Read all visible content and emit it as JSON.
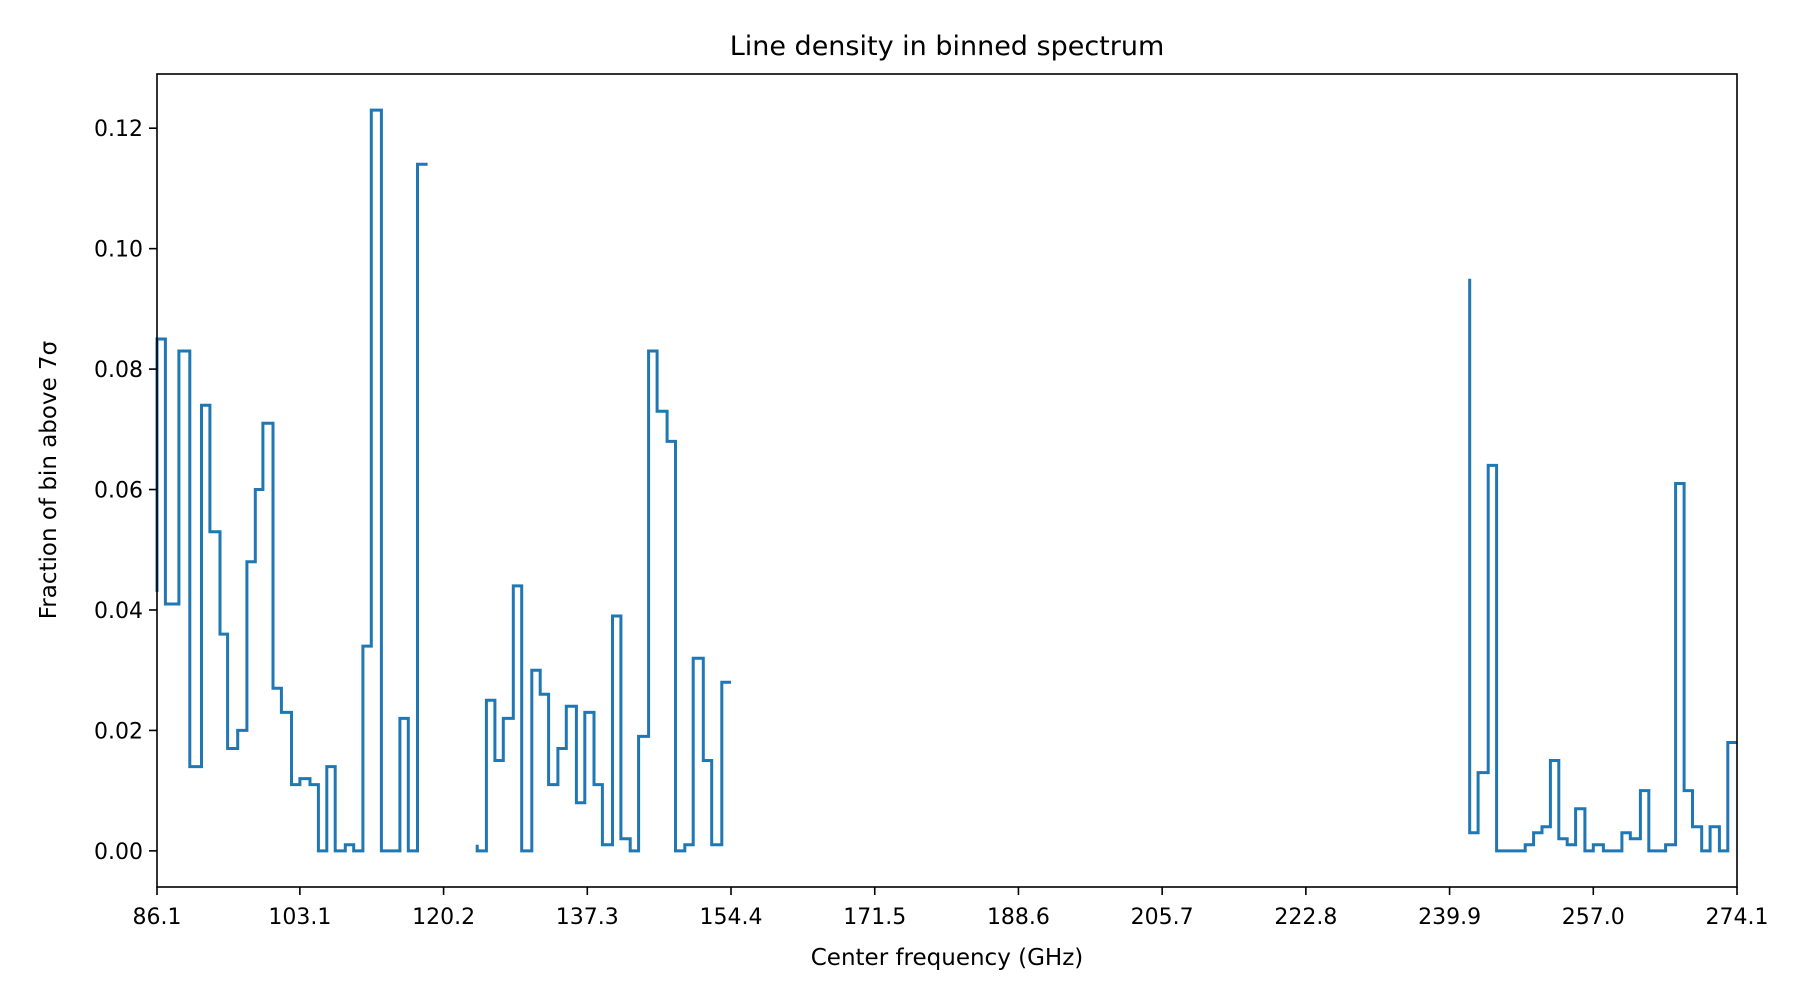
{
  "chart_data": {
    "type": "line",
    "title": "Line density in binned spectrum",
    "xlabel": "Center frequency (GHz)",
    "ylabel": "Fraction of bin above 7σ",
    "xlim": [
      86.1,
      274.1
    ],
    "ylim": [
      -0.006,
      0.129
    ],
    "xticks": [
      86.1,
      103.1,
      120.2,
      137.3,
      154.4,
      171.5,
      188.6,
      205.7,
      222.8,
      239.9,
      257.0,
      274.1
    ],
    "xtick_labels": [
      "86.1",
      "103.1",
      "120.2",
      "137.3",
      "154.4",
      "171.5",
      "188.6",
      "205.7",
      "222.8",
      "239.9",
      "257.0",
      "274.1"
    ],
    "yticks": [
      0.0,
      0.02,
      0.04,
      0.06,
      0.08,
      0.1,
      0.12
    ],
    "ytick_labels": [
      "0.00",
      "0.02",
      "0.04",
      "0.06",
      "0.08",
      "0.10",
      "0.12"
    ],
    "grid": false,
    "step": "pre",
    "color": "#1f77b4",
    "segments": [
      {
        "x": [
          86.1,
          87.1,
          88.7,
          90.0,
          91.4,
          92.4,
          93.6,
          94.5,
          95.7,
          96.8,
          97.8,
          98.7,
          99.9,
          100.9,
          102.1,
          103.1,
          104.3,
          105.3,
          106.3,
          107.3,
          108.5,
          109.5,
          110.6,
          111.6,
          112.8,
          113.8,
          115.0,
          116.0,
          117.1,
          118.3
        ],
        "y": [
          0.043,
          0.085,
          0.041,
          0.083,
          0.014,
          0.074,
          0.053,
          0.036,
          0.017,
          0.02,
          0.048,
          0.06,
          0.071,
          0.027,
          0.023,
          0.011,
          0.012,
          0.011,
          0.0,
          0.014,
          0.0,
          0.001,
          0.0,
          0.034,
          0.123,
          0.0,
          0.0,
          0.022,
          0.0,
          0.114
        ]
      },
      {
        "x": [
          124.2,
          125.3,
          126.3,
          127.3,
          128.5,
          129.5,
          130.7,
          131.7,
          132.7,
          133.8,
          134.8,
          136.0,
          137.0,
          138.1,
          139.1,
          140.3,
          141.3,
          142.4,
          143.4,
          144.6,
          145.6,
          146.8,
          147.8,
          148.9,
          149.9,
          151.1,
          152.1,
          153.3,
          154.4
        ],
        "y": [
          0.001,
          0.0,
          0.025,
          0.015,
          0.022,
          0.044,
          0.0,
          0.03,
          0.026,
          0.011,
          0.017,
          0.024,
          0.008,
          0.023,
          0.011,
          0.001,
          0.039,
          0.002,
          0.0,
          0.019,
          0.083,
          0.073,
          0.068,
          0.0,
          0.001,
          0.032,
          0.015,
          0.001,
          0.028
        ]
      },
      {
        "x": [
          242.3,
          243.3,
          244.5,
          245.5,
          246.7,
          247.9,
          248.9,
          249.9,
          250.9,
          251.9,
          252.9,
          253.9,
          254.9,
          256.0,
          257.0,
          258.2,
          259.2,
          260.4,
          261.4,
          262.6,
          263.6,
          264.6,
          265.6,
          266.8,
          267.8,
          268.8,
          269.9,
          270.9,
          272.0,
          273.0,
          274.1
        ],
        "y": [
          0.095,
          0.003,
          0.013,
          0.064,
          0.0,
          0.0,
          0.0,
          0.001,
          0.003,
          0.004,
          0.015,
          0.002,
          0.001,
          0.007,
          0.0,
          0.001,
          0.0,
          0.0,
          0.003,
          0.002,
          0.01,
          0.0,
          0.0,
          0.001,
          0.061,
          0.01,
          0.004,
          0.0,
          0.004,
          0.0,
          0.018
        ]
      }
    ]
  }
}
